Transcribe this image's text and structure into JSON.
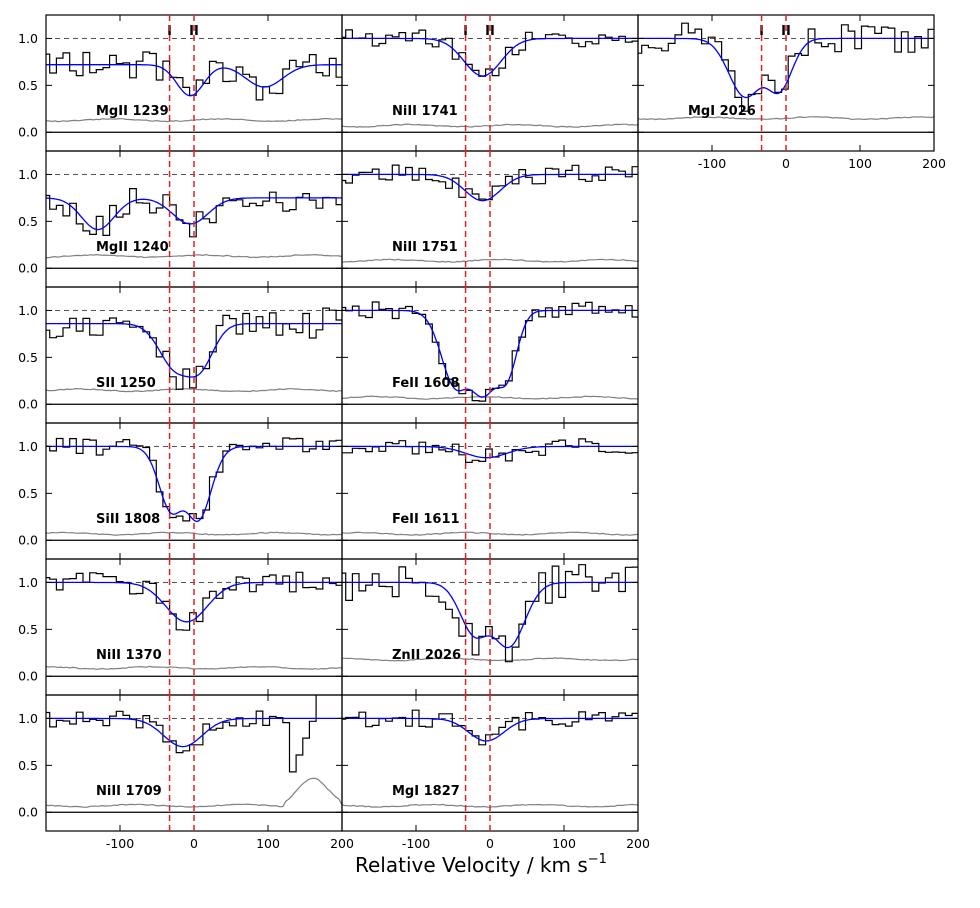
{
  "figure": {
    "xlabel_main": "Relative Velocity / km s",
    "xlabel_sup": "−1"
  },
  "chart_data": {
    "type": "line",
    "xlim": [
      -200,
      200
    ],
    "ylim": [
      -0.2,
      1.25
    ],
    "yticks": [
      0.0,
      0.5,
      1.0
    ],
    "ytick_labels": [
      "0.0",
      "0.5",
      "1.0"
    ],
    "xticks": [
      -100,
      0,
      100,
      200
    ],
    "xtick_labels": [
      "-100",
      "0",
      "100",
      "200"
    ],
    "components": [
      {
        "label": "I",
        "velocity": -33
      },
      {
        "label": "II",
        "velocity": 0
      }
    ],
    "colors": {
      "data": "#000000",
      "fit": "#0000ff",
      "error": "#808080",
      "components": "#e02020",
      "continuum": "#555555"
    },
    "panels": [
      {
        "id": "mgii-1239",
        "label": "MgII 1239",
        "col": 0,
        "row": 0,
        "continuum_level": 0.72,
        "error_level": 0.13,
        "show_component_labels": true,
        "absorption": [
          {
            "v": -5,
            "depth": 0.46,
            "sigma": 18
          },
          {
            "v": 95,
            "depth": 0.33,
            "sigma": 25
          }
        ]
      },
      {
        "id": "mgii-1240",
        "label": "MgII 1240",
        "col": 0,
        "row": 1,
        "continuum_level": 0.75,
        "error_level": 0.13,
        "absorption": [
          {
            "v": -130,
            "depth": 0.45,
            "sigma": 22
          },
          {
            "v": -5,
            "depth": 0.37,
            "sigma": 24
          }
        ]
      },
      {
        "id": "sii-1250",
        "label": "SII 1250",
        "col": 0,
        "row": 2,
        "continuum_level": 0.86,
        "error_level": 0.15,
        "absorption": [
          {
            "v": -25,
            "depth": 0.52,
            "sigma": 22
          },
          {
            "v": 5,
            "depth": 0.55,
            "sigma": 20
          }
        ]
      },
      {
        "id": "siii-1808",
        "label": "SiII 1808",
        "col": 0,
        "row": 3,
        "continuum_level": 1.0,
        "error_level": 0.07,
        "absorption": [
          {
            "v": -30,
            "depth": 0.68,
            "sigma": 17
          },
          {
            "v": 5,
            "depth": 0.78,
            "sigma": 18
          }
        ]
      },
      {
        "id": "niii-1370",
        "label": "NiII 1370",
        "col": 0,
        "row": 4,
        "continuum_level": 1.0,
        "error_level": 0.09,
        "absorption": [
          {
            "v": -10,
            "depth": 0.42,
            "sigma": 28
          }
        ]
      },
      {
        "id": "niii-1709",
        "label": "NiII 1709",
        "col": 0,
        "row": 5,
        "continuum_level": 1.0,
        "error_level": 0.07,
        "xticks_labeled": true,
        "absorption": [
          {
            "v": -15,
            "depth": 0.3,
            "sigma": 26
          }
        ]
      },
      {
        "id": "niii-1741",
        "label": "NiII 1741",
        "col": 1,
        "row": 0,
        "continuum_level": 1.0,
        "error_level": 0.07,
        "show_component_labels": true,
        "absorption": [
          {
            "v": -10,
            "depth": 0.4,
            "sigma": 25
          }
        ]
      },
      {
        "id": "niii-1751",
        "label": "NiII 1751",
        "col": 1,
        "row": 1,
        "continuum_level": 1.0,
        "error_level": 0.08,
        "absorption": [
          {
            "v": -10,
            "depth": 0.28,
            "sigma": 24
          }
        ]
      },
      {
        "id": "feii-1608",
        "label": "FeII 1608",
        "col": 1,
        "row": 2,
        "continuum_level": 1.0,
        "error_level": 0.07,
        "absorption": [
          {
            "v": -45,
            "depth": 0.8,
            "sigma": 20
          },
          {
            "v": -10,
            "depth": 0.9,
            "sigma": 22
          },
          {
            "v": 20,
            "depth": 0.7,
            "sigma": 15
          }
        ]
      },
      {
        "id": "feii-1611",
        "label": "FeII 1611",
        "col": 1,
        "row": 3,
        "continuum_level": 1.0,
        "error_level": 0.07,
        "absorption": [
          {
            "v": -5,
            "depth": 0.12,
            "sigma": 28
          }
        ]
      },
      {
        "id": "znii-2026",
        "label": "ZnII 2026",
        "col": 1,
        "row": 4,
        "continuum_level": 1.0,
        "error_level": 0.18,
        "absorption": [
          {
            "v": -20,
            "depth": 0.55,
            "sigma": 20
          },
          {
            "v": 25,
            "depth": 0.68,
            "sigma": 22
          }
        ]
      },
      {
        "id": "mgi-1827",
        "label": "MgI 1827",
        "col": 1,
        "row": 5,
        "continuum_level": 1.0,
        "error_level": 0.07,
        "xticks_labeled": true,
        "absorption": [
          {
            "v": -5,
            "depth": 0.24,
            "sigma": 24
          }
        ]
      },
      {
        "id": "mgi-2026",
        "label": "MgI 2026",
        "col": 2,
        "row": 0,
        "continuum_level": 1.0,
        "error_level": 0.15,
        "show_component_labels": true,
        "xticks_labeled": true,
        "absorption": [
          {
            "v": -55,
            "depth": 0.62,
            "sigma": 22
          },
          {
            "v": -10,
            "depth": 0.55,
            "sigma": 18
          }
        ]
      }
    ]
  }
}
